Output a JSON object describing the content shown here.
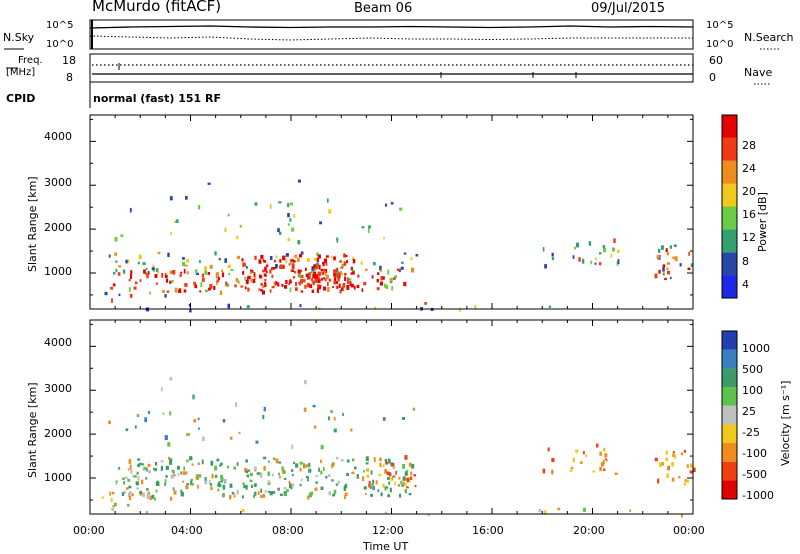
{
  "header": {
    "station_title": "McMurdo (fitACF)",
    "beam_label": "Beam 06",
    "date_label": "09/Jul/2015"
  },
  "noise_panel": {
    "left_label": "N.Sky",
    "right_label": "N.Search",
    "left_ticks": [
      "10^5",
      "10^0"
    ],
    "right_ticks": [
      "10^5",
      "10^0"
    ]
  },
  "freq_panel": {
    "left_label_line1": "Freq.",
    "left_label_line2": "[MHz]",
    "right_label": "Nave",
    "left_ticks": [
      "18",
      "8"
    ],
    "right_ticks": [
      "60",
      "0"
    ]
  },
  "cpid": {
    "label": "CPID",
    "value": "normal (fast) 151 RF"
  },
  "chart_data": [
    {
      "type": "heatmap",
      "name": "power",
      "ylabel": "Slant Range [km]",
      "ylim": [
        180,
        4600
      ],
      "yticks": [
        "1000",
        "2000",
        "3000",
        "4000"
      ],
      "xlim": [
        "00:00",
        "24:00"
      ],
      "colorbar_label": "Power [dB]",
      "colorbar_ticks": [
        "4",
        "8",
        "12",
        "16",
        "20",
        "24",
        "28"
      ],
      "colorbar_colors": [
        "#1e28e6",
        "#2646a8",
        "#33a070",
        "#6acd46",
        "#f0c81e",
        "#f08c1e",
        "#f03c14",
        "#e60000"
      ]
    },
    {
      "type": "heatmap",
      "name": "velocity",
      "ylabel": "Slant Range [km]",
      "ylim": [
        180,
        4600
      ],
      "yticks": [
        "1000",
        "2000",
        "3000",
        "4000"
      ],
      "xlim": [
        "00:00",
        "24:00"
      ],
      "xlabel": "Time UT",
      "xticks": [
        "00:00",
        "04:00",
        "08:00",
        "12:00",
        "16:00",
        "20:00",
        "00:00"
      ],
      "colorbar_label": "Velocity [m s⁻¹]",
      "colorbar_ticks": [
        "1000",
        "500",
        "100",
        "25",
        "-25",
        "-100",
        "-500",
        "-1000"
      ],
      "colorbar_colors": [
        "#2040b0",
        "#3a7fc0",
        "#3d9a6a",
        "#5ec24a",
        "#c0c0c0",
        "#f0c81e",
        "#f08c1e",
        "#f04010",
        "#e00000"
      ]
    }
  ]
}
